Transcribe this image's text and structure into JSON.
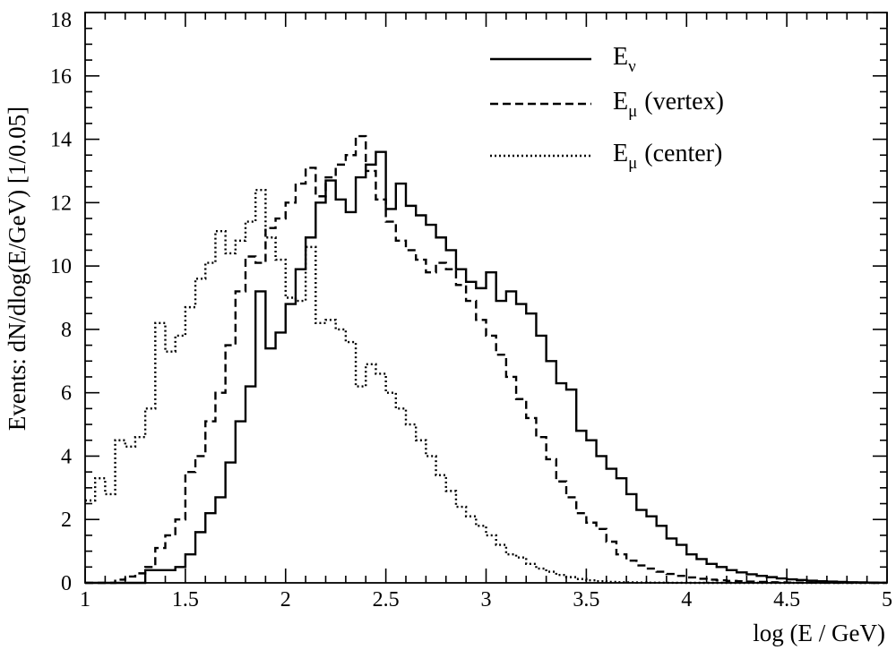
{
  "chart_data": {
    "type": "line",
    "style": "step-histogram",
    "xlabel": "log (E / GeV)",
    "ylabel": "Events: dN/dlog(E/GeV)   [1/0.05]",
    "xlim": [
      1,
      5
    ],
    "ylim": [
      0,
      18
    ],
    "x_ticks": [
      "1",
      "1.5",
      "2",
      "2.5",
      "3",
      "3.5",
      "4",
      "4.5",
      "5"
    ],
    "y_ticks": [
      "0",
      "2",
      "4",
      "6",
      "8",
      "10",
      "12",
      "14",
      "16",
      "18"
    ],
    "bin_width": 0.05,
    "bin_edges_start": 1.0,
    "grid": false,
    "legend_position": "top-right",
    "series": [
      {
        "name": "E",
        "name_subscript": "ν",
        "line_style": "solid",
        "values": [
          0,
          0,
          0,
          0,
          0,
          0,
          0.4,
          0.4,
          0.4,
          0.5,
          0.9,
          1.6,
          2.2,
          2.7,
          3.8,
          5.1,
          6.2,
          9.2,
          7.4,
          7.9,
          8.8,
          9.9,
          10.9,
          12.0,
          12.7,
          12.1,
          11.7,
          12.8,
          13.2,
          13.6,
          11.8,
          12.6,
          11.9,
          11.6,
          11.3,
          10.9,
          10.5,
          9.9,
          9.5,
          9.3,
          9.8,
          8.9,
          9.2,
          8.8,
          8.5,
          7.8,
          7.0,
          6.3,
          6.1,
          4.8,
          4.5,
          4.0,
          3.6,
          3.3,
          2.8,
          2.3,
          2.1,
          1.8,
          1.4,
          1.2,
          0.9,
          0.75,
          0.6,
          0.5,
          0.4,
          0.33,
          0.27,
          0.22,
          0.18,
          0.14,
          0.11,
          0.09,
          0.07,
          0.05,
          0.04,
          0.03,
          0.02,
          0.015,
          0.01,
          0.005
        ]
      },
      {
        "name": "E",
        "name_subscript": "μ",
        "name_suffix": "(vertex)",
        "line_style": "dashed",
        "values": [
          0,
          0,
          0,
          0.1,
          0.2,
          0.3,
          0.5,
          1.1,
          1.5,
          2.0,
          3.5,
          4.0,
          5.1,
          6.0,
          7.5,
          9.2,
          10.3,
          10.1,
          11.2,
          11.5,
          12.0,
          12.6,
          13.1,
          12.2,
          12.8,
          13.2,
          13.5,
          14.1,
          13.0,
          12.1,
          11.4,
          10.8,
          10.5,
          10.2,
          9.8,
          10.1,
          9.9,
          9.4,
          8.9,
          8.3,
          7.8,
          7.2,
          6.5,
          5.8,
          5.2,
          4.6,
          3.9,
          3.2,
          2.7,
          2.2,
          1.9,
          1.7,
          1.3,
          0.9,
          0.7,
          0.55,
          0.45,
          0.35,
          0.28,
          0.22,
          0.17,
          0.13,
          0.1,
          0.08,
          0.06,
          0.05,
          0.04,
          0.03,
          0.02,
          0.015,
          0.01,
          0.008,
          0.006,
          0.004,
          0.003,
          0.002,
          0.001,
          0.001,
          0,
          0
        ]
      },
      {
        "name": "E",
        "name_subscript": "μ",
        "name_suffix": "(center)",
        "line_style": "dotted",
        "values": [
          2.6,
          3.3,
          2.8,
          4.5,
          4.3,
          4.6,
          5.5,
          8.2,
          7.3,
          7.8,
          8.7,
          9.6,
          10.1,
          11.1,
          10.4,
          10.8,
          11.4,
          12.4,
          10.9,
          10.2,
          9.0,
          8.9,
          10.6,
          8.2,
          8.3,
          8.0,
          7.6,
          6.2,
          6.9,
          6.6,
          6.0,
          5.5,
          5.0,
          4.5,
          4.0,
          3.4,
          2.9,
          2.4,
          2.1,
          1.8,
          1.5,
          1.2,
          0.9,
          0.8,
          0.6,
          0.45,
          0.35,
          0.25,
          0.18,
          0.12,
          0.08,
          0.05,
          0.03,
          0.02,
          0.015,
          0.01,
          0.006,
          0.004,
          0.002,
          0.001,
          0,
          0,
          0,
          0,
          0,
          0,
          0,
          0,
          0,
          0,
          0,
          0,
          0,
          0,
          0,
          0,
          0,
          0,
          0,
          0
        ]
      }
    ]
  }
}
